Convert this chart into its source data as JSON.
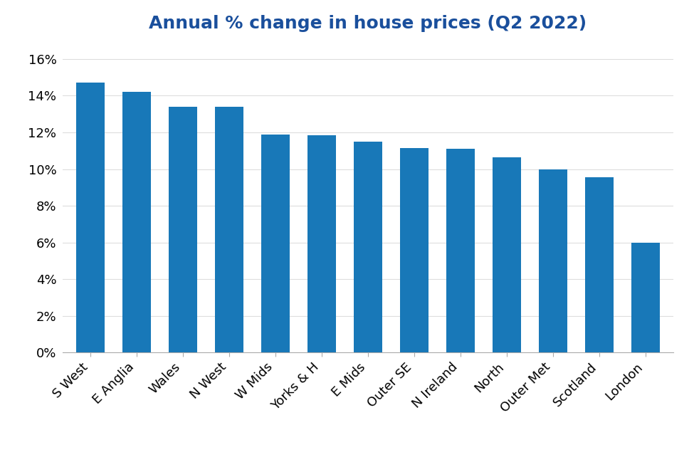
{
  "title": "Annual % change in house prices (Q2 2022)",
  "categories": [
    "S West",
    "E Anglia",
    "Wales",
    "N West",
    "W Mids",
    "Yorks & H",
    "E Mids",
    "Outer SE",
    "N Ireland",
    "North",
    "Outer Met",
    "Scotland",
    "London"
  ],
  "values": [
    14.7,
    14.2,
    13.4,
    13.4,
    11.9,
    11.85,
    11.5,
    11.15,
    11.1,
    10.65,
    10.0,
    9.55,
    6.0
  ],
  "bar_color": "#1878b8",
  "background_color": "#ffffff",
  "ylim": [
    0,
    17
  ],
  "yticks": [
    0,
    2,
    4,
    6,
    8,
    10,
    12,
    14,
    16
  ],
  "ytick_labels": [
    "0%",
    "2%",
    "4%",
    "6%",
    "8%",
    "10%",
    "12%",
    "14%",
    "16%"
  ],
  "title_color": "#1a4f9c",
  "title_fontsize": 18,
  "tick_fontsize": 13,
  "xtick_rotation": 45,
  "bar_width": 0.62,
  "spine_color": "#aaaaaa",
  "grid_color": "#dddddd"
}
